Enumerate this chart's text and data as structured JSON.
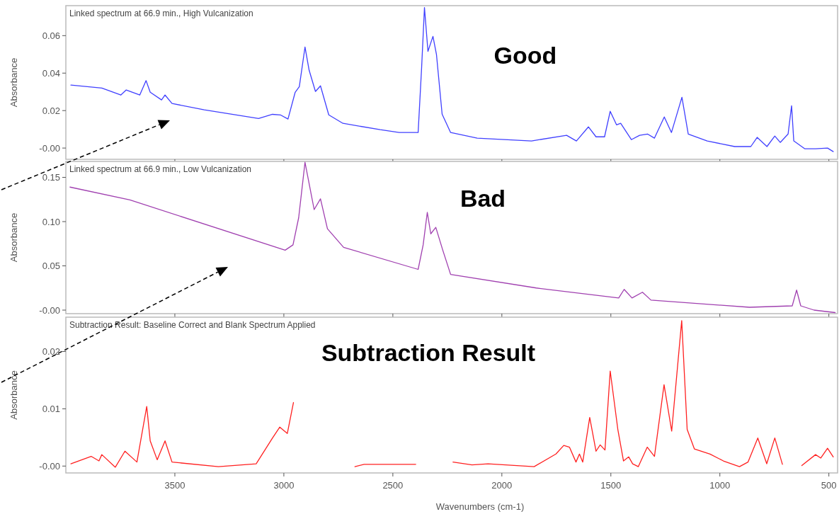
{
  "chart_data": [
    {
      "type": "line",
      "title": "Linked spectrum at 66.9 min., High Vulcanization",
      "ylabel": "Absorbance",
      "xlim": [
        4000,
        460
      ],
      "xticks": [
        3500,
        3000,
        2500,
        2000,
        1500,
        1000,
        500
      ],
      "ylim": [
        -0.006,
        0.076
      ],
      "yticks": [
        {
          "value": 0,
          "label": "-0.00"
        },
        {
          "value": 0.02,
          "label": "0.02"
        },
        {
          "value": 0.04,
          "label": "0.04"
        },
        {
          "value": 0.06,
          "label": "0.06"
        }
      ],
      "tick_labels": "y",
      "annotations": [
        "Good"
      ],
      "series": [
        {
          "color": "#4040ff",
          "x": [
            3977,
            3835,
            3748,
            3723,
            3661,
            3632,
            3613,
            3561,
            3545,
            3513,
            3365,
            3116,
            3052,
            3016,
            2981,
            2948,
            2929,
            2903,
            2884,
            2855,
            2832,
            2794,
            2729,
            2558,
            2471,
            2384,
            2368,
            2355,
            2339,
            2316,
            2300,
            2274,
            2235,
            2113,
            1864,
            1703,
            1658,
            1603,
            1568,
            1529,
            1503,
            1474,
            1455,
            1406,
            1368,
            1332,
            1300,
            1255,
            1222,
            1174,
            1145,
            1058,
            932,
            858,
            829,
            784,
            748,
            723,
            687,
            671,
            661,
            610,
            561,
            506,
            480
          ],
          "values": [
            0.0336,
            0.032,
            0.0283,
            0.031,
            0.0283,
            0.036,
            0.0298,
            0.0257,
            0.0283,
            0.0238,
            0.0204,
            0.0158,
            0.018,
            0.0177,
            0.0155,
            0.0298,
            0.0328,
            0.0539,
            0.0415,
            0.0302,
            0.0332,
            0.0177,
            0.0132,
            0.0098,
            0.0083,
            0.0083,
            0.043,
            0.075,
            0.0516,
            0.0596,
            0.05,
            0.0181,
            0.0083,
            0.0053,
            0.0038,
            0.0068,
            0.0038,
            0.0113,
            0.006,
            0.006,
            0.0196,
            0.0124,
            0.0132,
            0.0045,
            0.0068,
            0.0075,
            0.0053,
            0.0166,
            0.0083,
            0.0271,
            0.0075,
            0.0038,
            0.0008,
            0.0008,
            0.0057,
            0.0008,
            0.0064,
            0.003,
            0.0075,
            0.0226,
            0.0038,
            -0.0004,
            -0.0004,
            0.0,
            -0.0019
          ]
        }
      ]
    },
    {
      "type": "line",
      "title": "Linked spectrum at 66.9 min., Low Vulcanization",
      "ylabel": "Absorbance",
      "xlim": [
        4000,
        460
      ],
      "xticks": [
        3500,
        3000,
        2500,
        2000,
        1500,
        1000,
        500
      ],
      "ylim": [
        -0.004,
        0.168
      ],
      "yticks": [
        {
          "value": 0,
          "label": "-0.00"
        },
        {
          "value": 0.05,
          "label": "0.05"
        },
        {
          "value": 0.1,
          "label": "0.10"
        },
        {
          "value": 0.15,
          "label": "0.15"
        }
      ],
      "tick_labels": "y",
      "annotations": [
        "Bad"
      ],
      "series": [
        {
          "color": "#a040b0",
          "x": [
            3981,
            3706,
            2994,
            2958,
            2932,
            2903,
            2861,
            2832,
            2800,
            2726,
            2384,
            2361,
            2342,
            2326,
            2303,
            2271,
            2235,
            1842,
            1464,
            1439,
            1403,
            1355,
            1316,
            864,
            668,
            648,
            629,
            568,
            471
          ],
          "values": [
            0.139,
            0.1245,
            0.0677,
            0.0737,
            0.1044,
            0.167,
            0.1136,
            0.1257,
            0.0919,
            0.0709,
            0.046,
            0.0737,
            0.1104,
            0.0862,
            0.0935,
            0.0677,
            0.0403,
            0.025,
            0.0137,
            0.0234,
            0.0137,
            0.0202,
            0.0113,
            0.0032,
            0.0048,
            0.0226,
            0.0048,
            0.0,
            -0.0028
          ]
        }
      ]
    },
    {
      "type": "line",
      "title": "Subtraction Result: Baseline Correct and Blank Spectrum Applied",
      "xlabel": "Wavenumbers (cm-1)",
      "ylabel": "Absorbance",
      "xlim": [
        4000,
        460
      ],
      "xticks": [
        3500,
        3000,
        2500,
        2000,
        1500,
        1000,
        500
      ],
      "ylim": [
        -0.0012,
        0.026
      ],
      "yticks": [
        {
          "value": 0,
          "label": "-0.00"
        },
        {
          "value": 0.01,
          "label": "0.01"
        },
        {
          "value": 0.02,
          "label": "0.02"
        }
      ],
      "annotations": [
        "Subtraction Result"
      ],
      "series": [
        {
          "color": "#ff2020",
          "x": [
            3977,
            3884,
            3848,
            3835,
            3773,
            3729,
            3674,
            3629,
            3613,
            3581,
            3545,
            3513,
            3300,
            3127,
            3052,
            3019,
            2984,
            2956,
            2800,
            2674,
            2632,
            2395,
            2300,
            2224,
            2137,
            2063,
            1852,
            1752,
            1716,
            1690,
            1660,
            1644,
            1629,
            1597,
            1568,
            1549,
            1527,
            1503,
            1468,
            1442,
            1418,
            1400,
            1374,
            1333,
            1300,
            1256,
            1221,
            1175,
            1150,
            1117,
            1045,
            984,
            910,
            871,
            826,
            785,
            748,
            713,
            670,
            624,
            561,
            537,
            506,
            480
          ],
          "values": [
            0.0004,
            0.0017,
            0.0009,
            0.002,
            -0.0002,
            0.0026,
            0.0007,
            0.0104,
            0.0044,
            0.0011,
            0.0044,
            0.0007,
            -0.0001,
            0.0004,
            0.0049,
            0.0068,
            0.0057,
            0.0111,
            null,
            -0.0001,
            0.0003,
            0.0003,
            null,
            0.0007,
            0.0002,
            0.0004,
            -0.0001,
            0.0021,
            0.0036,
            0.0033,
            0.0007,
            0.0021,
            0.0007,
            0.0085,
            0.0026,
            0.0037,
            0.0028,
            0.0166,
            0.0064,
            0.0009,
            0.0016,
            0.0004,
            -0.0001,
            0.0033,
            0.0017,
            0.0142,
            0.0061,
            0.0254,
            0.0064,
            0.003,
            0.0021,
            0.0009,
            -0.0001,
            0.0007,
            0.0049,
            0.0004,
            0.0049,
            0.0003,
            null,
            0.0001,
            0.002,
            0.0014,
            0.0031,
            0.0016
          ]
        }
      ]
    }
  ]
}
